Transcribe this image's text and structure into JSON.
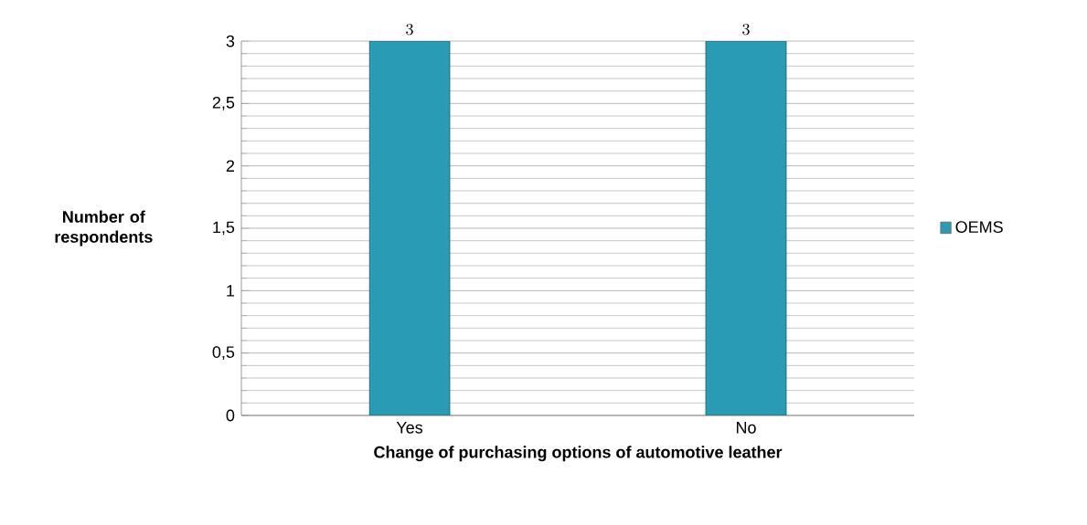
{
  "chart_data": {
    "type": "bar",
    "categories": [
      "Yes",
      "No"
    ],
    "series": [
      {
        "name": "OEMS",
        "color": "#2a9bb5",
        "values": [
          3,
          3
        ]
      }
    ],
    "xlabel": "Change of purchasing options of automotive leather",
    "ylabel": "Number of respondents",
    "ylim": [
      0,
      3
    ],
    "yticks": [
      0,
      {
        "value": 0.5,
        "label": "0,5"
      },
      1,
      {
        "value": 1.5,
        "label": "1,5"
      },
      2,
      {
        "value": 2.5,
        "label": "2,5"
      },
      3
    ],
    "grid": "y",
    "legend": "right",
    "data_labels": true
  }
}
